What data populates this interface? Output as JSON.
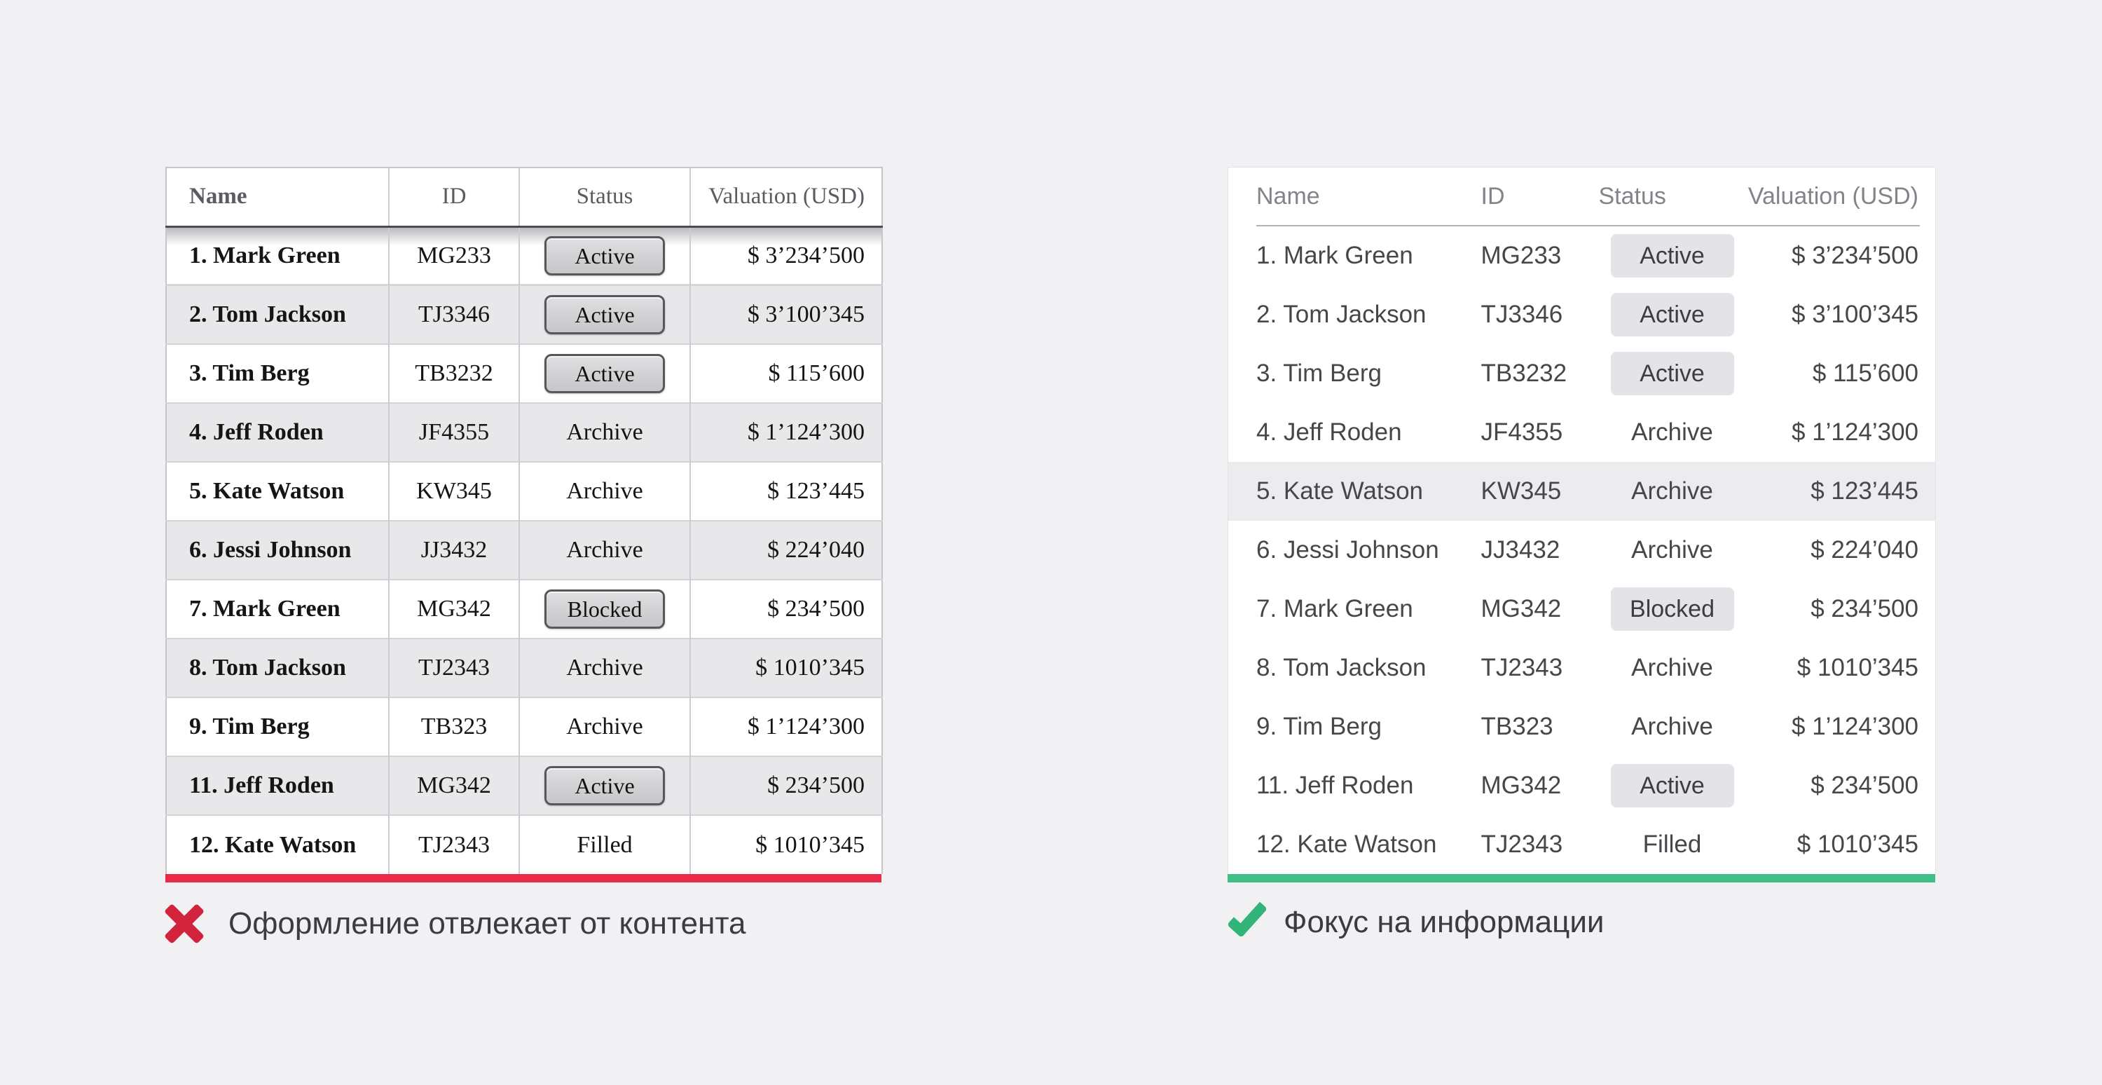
{
  "columns": [
    "Name",
    "ID",
    "Status",
    "Valuation (USD)"
  ],
  "rows": [
    {
      "name": "1. Mark Green",
      "id": "MG233",
      "status": "Active",
      "emphasized": true,
      "valuation": "$ 3’234’500"
    },
    {
      "name": "2. Tom Jackson",
      "id": "TJ3346",
      "status": "Active",
      "emphasized": true,
      "valuation": "$ 3’100’345"
    },
    {
      "name": "3. Tim Berg",
      "id": "TB3232",
      "status": "Active",
      "emphasized": true,
      "valuation": "$ 115’600"
    },
    {
      "name": "4. Jeff Roden",
      "id": "JF4355",
      "status": "Archive",
      "emphasized": false,
      "valuation": "$ 1’124’300"
    },
    {
      "name": "5. Kate Watson",
      "id": "KW345",
      "status": "Archive",
      "emphasized": false,
      "valuation": "$ 123’445"
    },
    {
      "name": "6. Jessi Johnson",
      "id": "JJ3432",
      "status": "Archive",
      "emphasized": false,
      "valuation": "$ 224’040"
    },
    {
      "name": "7. Mark Green",
      "id": "MG342",
      "status": "Blocked",
      "emphasized": true,
      "valuation": "$ 234’500"
    },
    {
      "name": "8. Tom Jackson",
      "id": "TJ2343",
      "status": "Archive",
      "emphasized": false,
      "valuation": "$ 1010’345"
    },
    {
      "name": "9. Tim Berg",
      "id": "TB323",
      "status": "Archive",
      "emphasized": false,
      "valuation": "$ 1’124’300"
    },
    {
      "name": "11. Jeff Roden",
      "id": "MG342",
      "status": "Active",
      "emphasized": true,
      "valuation": "$ 234’500"
    },
    {
      "name": "12. Kate Watson",
      "id": "TJ2343",
      "status": "Filled",
      "emphasized": false,
      "valuation": "$ 1010’345"
    }
  ],
  "left_panel": {
    "caption": "Оформление отвлекает от контента",
    "icon": "cross-icon"
  },
  "right_panel": {
    "caption": "Фокус на информации",
    "icon": "check-icon",
    "highlighted_row_index": 4
  },
  "colors": {
    "page_bg": "#f1f0f2",
    "red_line": "#e92b4a",
    "red_x": "#d2233c",
    "green_line": "#3fbf86",
    "green_check": "#32b377",
    "stripe": "#e8e7ea",
    "highlight": "#ececef"
  }
}
